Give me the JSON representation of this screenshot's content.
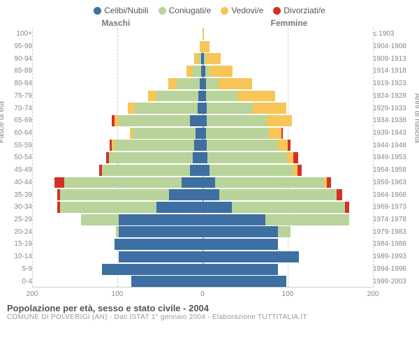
{
  "legend": {
    "items": [
      {
        "label": "Celibi/Nubili",
        "color": "#3d6fa3"
      },
      {
        "label": "Coniugati/e",
        "color": "#b9d49a"
      },
      {
        "label": "Vedovi/e",
        "color": "#f7c558"
      },
      {
        "label": "Divorziati/e",
        "color": "#d33127"
      }
    ]
  },
  "chart": {
    "type": "population-pyramid",
    "male_label": "Maschi",
    "female_label": "Femmine",
    "left_axis_title": "Fasce di età",
    "right_axis_title": "Anni di nascita",
    "x_max": 200,
    "x_ticks": [
      200,
      100,
      0,
      100,
      200
    ],
    "x_tick_positions": [
      0,
      25,
      50,
      75,
      100
    ],
    "colors": {
      "single": "#3d6fa3",
      "married": "#b9d49a",
      "widowed": "#f7c558",
      "divorced": "#d33127",
      "grid": "#cccccc",
      "center": "#aaaaaa",
      "background": "#ffffff"
    },
    "rows": [
      {
        "age": "0-4",
        "birth": "1999-2003",
        "m": {
          "s": 85,
          "c": 0,
          "w": 0,
          "d": 0
        },
        "f": {
          "s": 100,
          "c": 0,
          "w": 0,
          "d": 0
        }
      },
      {
        "age": "5-9",
        "birth": "1994-1998",
        "m": {
          "s": 120,
          "c": 0,
          "w": 0,
          "d": 0
        },
        "f": {
          "s": 90,
          "c": 0,
          "w": 0,
          "d": 0
        }
      },
      {
        "age": "10-14",
        "birth": "1989-1993",
        "m": {
          "s": 100,
          "c": 0,
          "w": 0,
          "d": 0
        },
        "f": {
          "s": 115,
          "c": 0,
          "w": 0,
          "d": 0
        }
      },
      {
        "age": "15-19",
        "birth": "1984-1988",
        "m": {
          "s": 105,
          "c": 0,
          "w": 0,
          "d": 0
        },
        "f": {
          "s": 90,
          "c": 0,
          "w": 0,
          "d": 0
        }
      },
      {
        "age": "20-24",
        "birth": "1979-1983",
        "m": {
          "s": 100,
          "c": 3,
          "w": 0,
          "d": 0
        },
        "f": {
          "s": 90,
          "c": 15,
          "w": 0,
          "d": 0
        }
      },
      {
        "age": "25-29",
        "birth": "1974-1978",
        "m": {
          "s": 100,
          "c": 45,
          "w": 0,
          "d": 0
        },
        "f": {
          "s": 75,
          "c": 100,
          "w": 0,
          "d": 0
        }
      },
      {
        "age": "30-34",
        "birth": "1969-1973",
        "m": {
          "s": 55,
          "c": 115,
          "w": 0,
          "d": 3
        },
        "f": {
          "s": 35,
          "c": 135,
          "w": 0,
          "d": 5
        }
      },
      {
        "age": "35-39",
        "birth": "1964-1968",
        "m": {
          "s": 40,
          "c": 130,
          "w": 0,
          "d": 3
        },
        "f": {
          "s": 20,
          "c": 140,
          "w": 0,
          "d": 7
        }
      },
      {
        "age": "40-44",
        "birth": "1959-1963",
        "m": {
          "s": 25,
          "c": 140,
          "w": 0,
          "d": 12
        },
        "f": {
          "s": 15,
          "c": 130,
          "w": 3,
          "d": 5
        }
      },
      {
        "age": "45-49",
        "birth": "1954-1958",
        "m": {
          "s": 15,
          "c": 105,
          "w": 0,
          "d": 3
        },
        "f": {
          "s": 8,
          "c": 100,
          "w": 5,
          "d": 5
        }
      },
      {
        "age": "50-54",
        "birth": "1949-1953",
        "m": {
          "s": 12,
          "c": 100,
          "w": 0,
          "d": 3
        },
        "f": {
          "s": 6,
          "c": 95,
          "w": 7,
          "d": 6
        }
      },
      {
        "age": "55-59",
        "birth": "1944-1948",
        "m": {
          "s": 10,
          "c": 95,
          "w": 3,
          "d": 3
        },
        "f": {
          "s": 5,
          "c": 85,
          "w": 12,
          "d": 3
        }
      },
      {
        "age": "60-64",
        "birth": "1939-1943",
        "m": {
          "s": 8,
          "c": 75,
          "w": 4,
          "d": 0
        },
        "f": {
          "s": 4,
          "c": 75,
          "w": 15,
          "d": 2
        }
      },
      {
        "age": "65-69",
        "birth": "1934-1938",
        "m": {
          "s": 15,
          "c": 85,
          "w": 5,
          "d": 3
        },
        "f": {
          "s": 5,
          "c": 72,
          "w": 30,
          "d": 0
        }
      },
      {
        "age": "70-74",
        "birth": "1929-1933",
        "m": {
          "s": 6,
          "c": 75,
          "w": 8,
          "d": 0
        },
        "f": {
          "s": 5,
          "c": 55,
          "w": 40,
          "d": 0
        }
      },
      {
        "age": "75-79",
        "birth": "1924-1928",
        "m": {
          "s": 5,
          "c": 50,
          "w": 10,
          "d": 0
        },
        "f": {
          "s": 4,
          "c": 38,
          "w": 45,
          "d": 0
        }
      },
      {
        "age": "80-84",
        "birth": "1919-1923",
        "m": {
          "s": 3,
          "c": 28,
          "w": 10,
          "d": 0
        },
        "f": {
          "s": 4,
          "c": 15,
          "w": 40,
          "d": 0
        }
      },
      {
        "age": "85-89",
        "birth": "1914-1918",
        "m": {
          "s": 2,
          "c": 10,
          "w": 7,
          "d": 0
        },
        "f": {
          "s": 3,
          "c": 5,
          "w": 28,
          "d": 0
        }
      },
      {
        "age": "90-94",
        "birth": "1909-1913",
        "m": {
          "s": 2,
          "c": 3,
          "w": 5,
          "d": 0
        },
        "f": {
          "s": 2,
          "c": 2,
          "w": 18,
          "d": 0
        }
      },
      {
        "age": "95-99",
        "birth": "1904-1908",
        "m": {
          "s": 0,
          "c": 0,
          "w": 3,
          "d": 0
        },
        "f": {
          "s": 0,
          "c": 0,
          "w": 8,
          "d": 0
        }
      },
      {
        "age": "100+",
        "birth": "≤ 1903",
        "m": {
          "s": 0,
          "c": 0,
          "w": 0,
          "d": 0
        },
        "f": {
          "s": 0,
          "c": 0,
          "w": 2,
          "d": 0
        }
      }
    ]
  },
  "footer": {
    "title": "Popolazione per età, sesso e stato civile - 2004",
    "subtitle": "COMUNE DI POLVERIGI (AN) - Dati ISTAT 1° gennaio 2004 - Elaborazione TUTTITALIA.IT"
  }
}
